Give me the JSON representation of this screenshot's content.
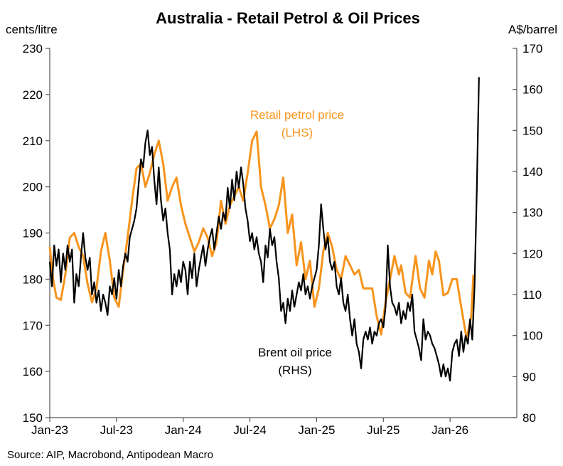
{
  "chart_data": {
    "type": "line",
    "title": "Australia - Retail Petrol & Oil Prices",
    "ylabel_left": "cents/litre",
    "ylabel_right": "A$/barrel",
    "source": "Source: AIP, Macrobond, Antipodean Macro",
    "x_unit": "months since Jan-23",
    "xlim": [
      0,
      42
    ],
    "x_ticks": [
      {
        "m": 0,
        "label": "Jan-23"
      },
      {
        "m": 6,
        "label": "Jul-23"
      },
      {
        "m": 12,
        "label": "Jan-24"
      },
      {
        "m": 18,
        "label": "Jul-24"
      },
      {
        "m": 24,
        "label": "Jan-25"
      },
      {
        "m": 30,
        "label": "Jul-25"
      },
      {
        "m": 36,
        "label": "Jan-26"
      }
    ],
    "ylim_left": [
      150,
      230
    ],
    "yticks_left": [
      150,
      160,
      170,
      180,
      190,
      200,
      210,
      220,
      230
    ],
    "ylim_right": [
      80,
      170
    ],
    "yticks_right": [
      80,
      90,
      100,
      110,
      120,
      130,
      140,
      150,
      160,
      170
    ],
    "colors": {
      "petrol": "#F7941D",
      "brent": "#000000"
    },
    "series": [
      {
        "name": "Retail petrol price",
        "label": [
          "Retail petrol price",
          "(LHS)"
        ],
        "axis": "left",
        "points": [
          [
            0,
            187
          ],
          [
            0.3,
            180
          ],
          [
            0.6,
            176
          ],
          [
            1,
            175.5
          ],
          [
            1.4,
            181
          ],
          [
            1.8,
            189
          ],
          [
            2.2,
            190
          ],
          [
            2.6,
            187
          ],
          [
            3,
            185
          ],
          [
            3.4,
            179
          ],
          [
            3.8,
            175
          ],
          [
            4.2,
            178
          ],
          [
            4.6,
            186
          ],
          [
            5,
            190
          ],
          [
            5.4,
            184
          ],
          [
            5.8,
            176
          ],
          [
            6.2,
            174
          ],
          [
            6.6,
            182
          ],
          [
            7,
            189
          ],
          [
            7.4,
            197
          ],
          [
            7.8,
            204
          ],
          [
            8.2,
            205
          ],
          [
            8.6,
            200
          ],
          [
            9,
            203
          ],
          [
            9.4,
            207
          ],
          [
            9.8,
            210
          ],
          [
            10.2,
            205
          ],
          [
            10.6,
            197
          ],
          [
            11,
            200
          ],
          [
            11.4,
            202
          ],
          [
            11.8,
            196
          ],
          [
            12.2,
            192
          ],
          [
            12.6,
            189
          ],
          [
            13,
            186
          ],
          [
            13.4,
            188
          ],
          [
            13.8,
            191
          ],
          [
            14.2,
            189
          ],
          [
            14.6,
            185
          ],
          [
            15,
            188
          ],
          [
            15.4,
            197
          ],
          [
            15.8,
            192
          ],
          [
            16.2,
            196
          ],
          [
            16.6,
            198
          ],
          [
            17,
            200
          ],
          [
            17.4,
            197
          ],
          [
            17.8,
            203
          ],
          [
            18.2,
            210
          ],
          [
            18.6,
            212
          ],
          [
            19,
            200
          ],
          [
            19.4,
            196
          ],
          [
            19.8,
            191
          ],
          [
            20.2,
            193
          ],
          [
            20.6,
            196
          ],
          [
            21,
            202
          ],
          [
            21.4,
            190
          ],
          [
            21.8,
            194
          ],
          [
            22.2,
            183
          ],
          [
            22.6,
            188
          ],
          [
            23,
            180
          ],
          [
            23.4,
            184
          ],
          [
            23.8,
            174
          ],
          [
            24.2,
            178
          ],
          [
            24.6,
            186
          ],
          [
            25,
            190
          ],
          [
            25.4,
            187
          ],
          [
            25.8,
            182
          ],
          [
            26.2,
            180
          ],
          [
            26.6,
            185
          ],
          [
            27,
            183
          ],
          [
            27.4,
            181
          ],
          [
            27.8,
            182
          ],
          [
            28.2,
            178
          ],
          [
            28.6,
            178
          ],
          [
            29,
            178
          ],
          [
            29.4,
            172
          ],
          [
            29.8,
            168
          ],
          [
            30.2,
            175
          ],
          [
            30.6,
            180
          ],
          [
            31,
            185
          ],
          [
            31.4,
            181
          ],
          [
            31.6,
            183
          ],
          [
            32,
            177
          ],
          [
            32.4,
            176
          ],
          [
            32.9,
            185
          ],
          [
            33.3,
            178
          ],
          [
            33.7,
            176
          ],
          [
            34.1,
            184
          ],
          [
            34.4,
            181
          ],
          [
            34.7,
            186
          ],
          [
            35,
            184
          ],
          [
            35.4,
            176.5
          ],
          [
            35.8,
            177
          ],
          [
            36.2,
            180
          ],
          [
            36.6,
            180
          ],
          [
            37,
            174
          ],
          [
            37.5,
            167
          ],
          [
            37.9,
            172
          ],
          [
            38.1,
            181
          ]
        ]
      },
      {
        "name": "Brent oil price",
        "label": [
          "Brent oil price",
          "(RHS)"
        ],
        "axis": "right",
        "points": [
          [
            0,
            118
          ],
          [
            0.2,
            112
          ],
          [
            0.4,
            122
          ],
          [
            0.6,
            117
          ],
          [
            0.8,
            121
          ],
          [
            1,
            113
          ],
          [
            1.2,
            120
          ],
          [
            1.4,
            116
          ],
          [
            1.6,
            122
          ],
          [
            1.8,
            118
          ],
          [
            2,
            121
          ],
          [
            2.2,
            108
          ],
          [
            2.4,
            115
          ],
          [
            2.6,
            112
          ],
          [
            2.8,
            119
          ],
          [
            3,
            125
          ],
          [
            3.2,
            119
          ],
          [
            3.4,
            116
          ],
          [
            3.6,
            119
          ],
          [
            3.8,
            110
          ],
          [
            4,
            113
          ],
          [
            4.2,
            108
          ],
          [
            4.4,
            111
          ],
          [
            4.6,
            106
          ],
          [
            4.8,
            110
          ],
          [
            5,
            108
          ],
          [
            5.2,
            105
          ],
          [
            5.4,
            112
          ],
          [
            5.6,
            110
          ],
          [
            5.8,
            114
          ],
          [
            6,
            109
          ],
          [
            6.2,
            116
          ],
          [
            6.4,
            112
          ],
          [
            6.6,
            117
          ],
          [
            6.8,
            120
          ],
          [
            7,
            118
          ],
          [
            7.2,
            124
          ],
          [
            7.4,
            126
          ],
          [
            7.6,
            128
          ],
          [
            7.8,
            131
          ],
          [
            8,
            137
          ],
          [
            8.2,
            143
          ],
          [
            8.4,
            141
          ],
          [
            8.6,
            147
          ],
          [
            8.8,
            150
          ],
          [
            9,
            144
          ],
          [
            9.2,
            146
          ],
          [
            9.4,
            138
          ],
          [
            9.6,
            132
          ],
          [
            9.8,
            141
          ],
          [
            10,
            133
          ],
          [
            10.2,
            128
          ],
          [
            10.4,
            131
          ],
          [
            10.6,
            125
          ],
          [
            10.8,
            121
          ],
          [
            11,
            110
          ],
          [
            11.2,
            115
          ],
          [
            11.4,
            112
          ],
          [
            11.6,
            116
          ],
          [
            11.8,
            113
          ],
          [
            12,
            118
          ],
          [
            12.2,
            116
          ],
          [
            12.4,
            110
          ],
          [
            12.6,
            118
          ],
          [
            12.8,
            114
          ],
          [
            13,
            120
          ],
          [
            13.2,
            112
          ],
          [
            13.4,
            116
          ],
          [
            13.6,
            119
          ],
          [
            13.8,
            122
          ],
          [
            14,
            117
          ],
          [
            14.2,
            121
          ],
          [
            14.4,
            124
          ],
          [
            14.6,
            126
          ],
          [
            14.8,
            121
          ],
          [
            15,
            125
          ],
          [
            15.2,
            129
          ],
          [
            15.4,
            126
          ],
          [
            15.6,
            130
          ],
          [
            15.8,
            128
          ],
          [
            16,
            136
          ],
          [
            16.2,
            131
          ],
          [
            16.4,
            138
          ],
          [
            16.6,
            133
          ],
          [
            16.8,
            140
          ],
          [
            17,
            136
          ],
          [
            17.2,
            141
          ],
          [
            17.4,
            137
          ],
          [
            17.6,
            131
          ],
          [
            17.8,
            128
          ],
          [
            18,
            123
          ],
          [
            18.2,
            125
          ],
          [
            18.4,
            121
          ],
          [
            18.6,
            124
          ],
          [
            18.8,
            120
          ],
          [
            19,
            118
          ],
          [
            19.2,
            113
          ],
          [
            19.4,
            122
          ],
          [
            19.6,
            119
          ],
          [
            19.8,
            126
          ],
          [
            20,
            122
          ],
          [
            20.2,
            124
          ],
          [
            20.4,
            118
          ],
          [
            20.6,
            114
          ],
          [
            20.8,
            106
          ],
          [
            21,
            108
          ],
          [
            21.2,
            103
          ],
          [
            21.4,
            109
          ],
          [
            21.6,
            106
          ],
          [
            21.8,
            111
          ],
          [
            22,
            107
          ],
          [
            22.2,
            110
          ],
          [
            22.4,
            113
          ],
          [
            22.6,
            111
          ],
          [
            22.8,
            115
          ],
          [
            23,
            110
          ],
          [
            23.2,
            112
          ],
          [
            23.4,
            109
          ],
          [
            23.6,
            112
          ],
          [
            23.8,
            114
          ],
          [
            24,
            116
          ],
          [
            24.2,
            122
          ],
          [
            24.4,
            132
          ],
          [
            24.6,
            126
          ],
          [
            24.8,
            121
          ],
          [
            25,
            124
          ],
          [
            25.2,
            118
          ],
          [
            25.4,
            116
          ],
          [
            25.6,
            118
          ],
          [
            25.8,
            112
          ],
          [
            26,
            110
          ],
          [
            26.2,
            114
          ],
          [
            26.4,
            108
          ],
          [
            26.6,
            106
          ],
          [
            26.8,
            110
          ],
          [
            27,
            104
          ],
          [
            27.2,
            100
          ],
          [
            27.4,
            104
          ],
          [
            27.6,
            98
          ],
          [
            27.8,
            96
          ],
          [
            28,
            92
          ],
          [
            28.2,
            99
          ],
          [
            28.4,
            101
          ],
          [
            28.6,
            99
          ],
          [
            28.8,
            102
          ],
          [
            29,
            98
          ],
          [
            29.2,
            101
          ],
          [
            29.4,
            100
          ],
          [
            29.6,
            103
          ],
          [
            29.8,
            104
          ],
          [
            30,
            102
          ],
          [
            30.2,
            107
          ],
          [
            30.4,
            122
          ],
          [
            30.6,
            112
          ],
          [
            30.8,
            108
          ],
          [
            31,
            107
          ],
          [
            31.2,
            105
          ],
          [
            31.4,
            108
          ],
          [
            31.6,
            103
          ],
          [
            31.8,
            106
          ],
          [
            32,
            104
          ],
          [
            32.2,
            108
          ],
          [
            32.4,
            106
          ],
          [
            32.6,
            110
          ],
          [
            32.8,
            101
          ],
          [
            33,
            99
          ],
          [
            33.2,
            97
          ],
          [
            33.4,
            94
          ],
          [
            33.6,
            104
          ],
          [
            33.8,
            99
          ],
          [
            34,
            101
          ],
          [
            34.2,
            100
          ],
          [
            34.4,
            98
          ],
          [
            34.6,
            97
          ],
          [
            34.8,
            95
          ],
          [
            35,
            93
          ],
          [
            35.2,
            90
          ],
          [
            35.4,
            93
          ],
          [
            35.6,
            90
          ],
          [
            35.8,
            92
          ],
          [
            36,
            89
          ],
          [
            36.2,
            96
          ],
          [
            36.4,
            98
          ],
          [
            36.6,
            99
          ],
          [
            36.8,
            95
          ],
          [
            37,
            101
          ],
          [
            37.2,
            96
          ],
          [
            37.4,
            100
          ],
          [
            37.6,
            98
          ],
          [
            37.8,
            104
          ],
          [
            38,
            99
          ],
          [
            38.2,
            112
          ],
          [
            38.4,
            135
          ],
          [
            38.6,
            163
          ]
        ]
      }
    ]
  }
}
